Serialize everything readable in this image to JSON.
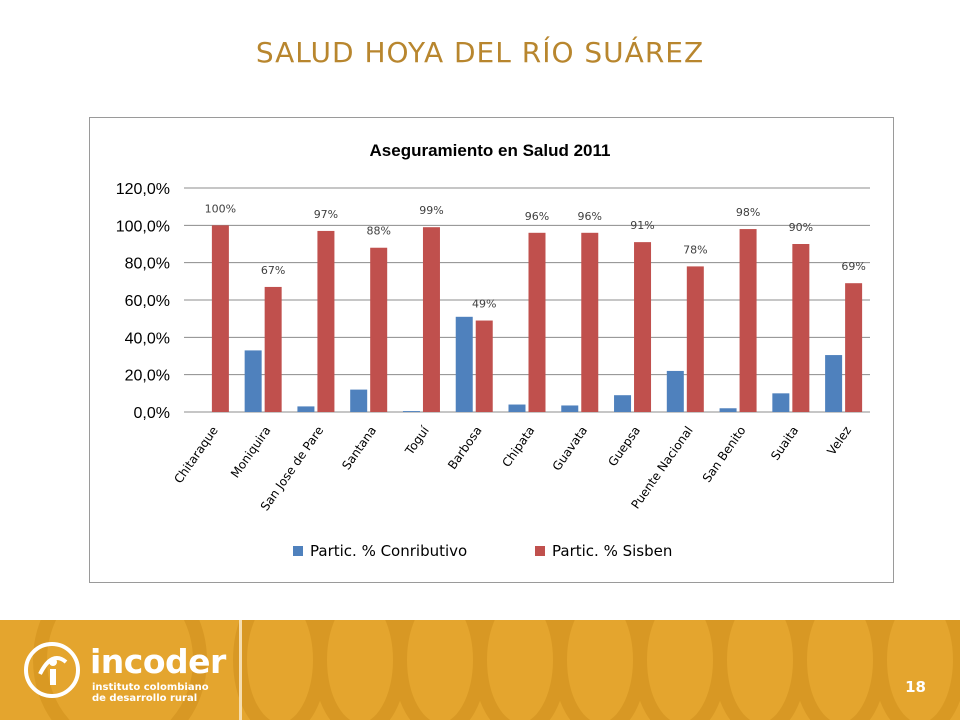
{
  "slide": {
    "title": "SALUD HOYA DEL RÍO SUÁREZ",
    "page_number": "18"
  },
  "logo": {
    "name": "incoder",
    "tagline_line1": "instituto colombiano",
    "tagline_line2": "de desarrollo rural"
  },
  "colors": {
    "title": "#b8862e",
    "series_contributivo": "#4f81bd",
    "series_sisben": "#c0504d",
    "footer": "#e4a52e"
  },
  "chart_data": {
    "type": "bar",
    "title": "Aseguramiento en Salud 2011",
    "categories": [
      "Chitaraque",
      "Moniquira",
      "San Jose de Pare",
      "Santana",
      "Toguí",
      "Barbosa",
      "Chipata",
      "Guavata",
      "Guepsa",
      "Puente Nacional",
      "San Benito",
      "Suaita",
      "Velez"
    ],
    "series": [
      {
        "name": "Partic. % Conributivo",
        "values": [
          0,
          33,
          3,
          12,
          0.5,
          51,
          4,
          3.5,
          9,
          22,
          2,
          10,
          30.5
        ]
      },
      {
        "name": "Partic. % Sisben",
        "values": [
          100,
          67,
          97,
          88,
          99,
          49,
          96,
          96,
          91,
          78,
          98,
          90,
          69
        ],
        "data_labels": [
          "100%",
          "67%",
          "97%",
          "88%",
          "99%",
          "49%",
          "96%",
          "96%",
          "91%",
          "78%",
          "98%",
          "90%",
          "69%"
        ]
      }
    ],
    "ylim": [
      0,
      120
    ],
    "yticks": [
      0,
      20,
      40,
      60,
      80,
      100,
      120
    ],
    "ytick_labels": [
      "0,0%",
      "20,0%",
      "40,0%",
      "60,0%",
      "80,0%",
      "100,0%",
      "120,0%"
    ],
    "grid": true,
    "legend_position": "bottom"
  }
}
